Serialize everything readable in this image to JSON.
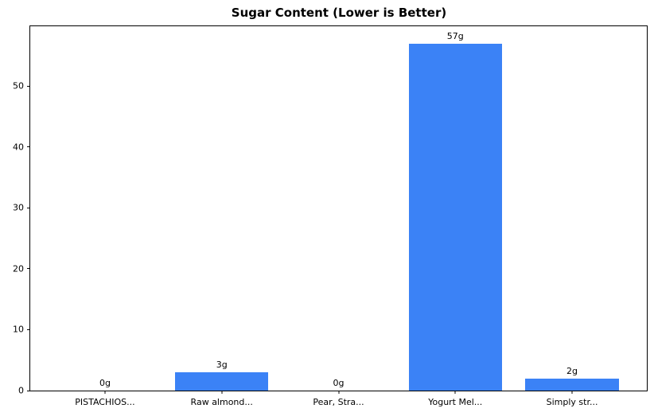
{
  "chart_data": {
    "type": "bar",
    "title": "Sugar Content (Lower is Better)",
    "categories": [
      "PISTACHIOS...",
      "Raw almond...",
      "Pear, Stra...",
      "Yogurt Mel...",
      "Simply str..."
    ],
    "values": [
      0,
      3,
      0,
      57,
      2
    ],
    "bar_labels": [
      "0g",
      "3g",
      "0g",
      "57g",
      "2g"
    ],
    "xlabel": "",
    "ylabel": "",
    "ylim": [
      0,
      59.85
    ],
    "yticks": [
      0,
      10,
      20,
      30,
      40,
      50
    ],
    "bar_color": "#3b82f6",
    "grid": false,
    "legend_position": "none",
    "bar_width_fraction": 0.8,
    "x_margin_units": 0.64
  }
}
